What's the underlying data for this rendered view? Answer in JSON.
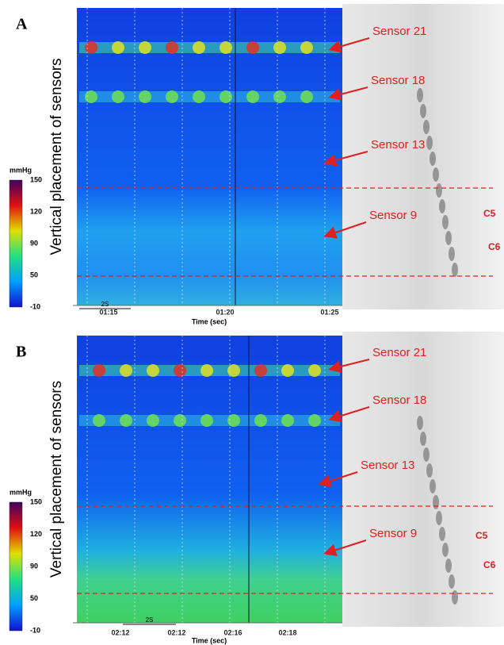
{
  "panels": [
    {
      "label": "A",
      "y_label": "Vertical placement of sensors",
      "colorbar": {
        "unit": "mmHg",
        "ticks": [
          150,
          120,
          90,
          50,
          -10
        ]
      },
      "time_ticks": [
        "01:15",
        "01:20",
        "01:25"
      ],
      "scale_bar": "2S",
      "x_label": "Time (sec)",
      "annotations": [
        "Sensor 21",
        "Sensor 18",
        "Sensor 13",
        "Sensor 9"
      ],
      "vertebrae": [
        "C5",
        "C6"
      ]
    },
    {
      "label": "B",
      "y_label": "Vertical placement of sensors",
      "colorbar": {
        "unit": "mmHg",
        "ticks": [
          150,
          120,
          90,
          50,
          -10
        ]
      },
      "time_ticks": [
        "02:12",
        "02:12",
        "02:16",
        "02:18"
      ],
      "scale_bar": "2S",
      "x_label": "Time (sec)",
      "annotations": [
        "Sensor 21",
        "Sensor 18",
        "Sensor 13",
        "Sensor 9"
      ],
      "vertebrae": [
        "C5",
        "C6"
      ]
    }
  ]
}
